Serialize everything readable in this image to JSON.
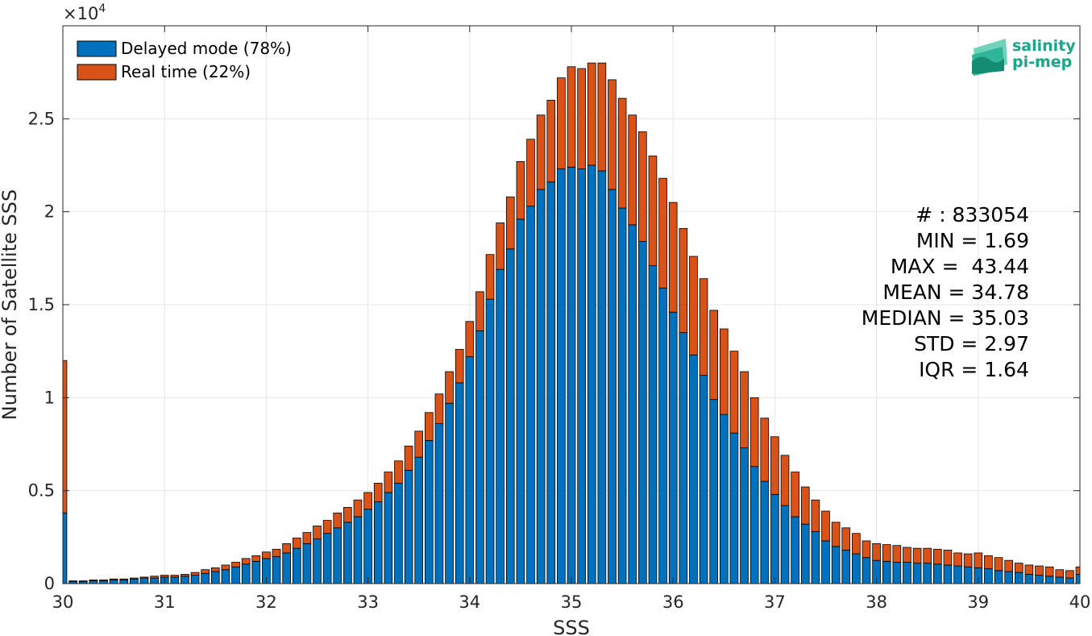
{
  "chart_data": {
    "type": "bar",
    "stacked": true,
    "xlabel": "SSS",
    "ylabel": "Number of Satellite SSS",
    "y_exponent_label": "×10",
    "y_exponent_power": "4",
    "xlim": [
      30,
      40
    ],
    "ylim": [
      0,
      30000
    ],
    "x_ticks": [
      "30",
      "31",
      "32",
      "33",
      "34",
      "35",
      "36",
      "37",
      "38",
      "39",
      "40"
    ],
    "y_ticks": [
      "0",
      "0.5",
      "1",
      "1.5",
      "2",
      "2.5"
    ],
    "grid": true,
    "legend_position": "top-left",
    "bin_width": 0.1,
    "x": [
      30.0,
      30.1,
      30.2,
      30.3,
      30.4,
      30.5,
      30.6,
      30.7,
      30.8,
      30.9,
      31.0,
      31.1,
      31.2,
      31.3,
      31.4,
      31.5,
      31.6,
      31.7,
      31.8,
      31.9,
      32.0,
      32.1,
      32.2,
      32.3,
      32.4,
      32.5,
      32.6,
      32.7,
      32.8,
      32.9,
      33.0,
      33.1,
      33.2,
      33.3,
      33.4,
      33.5,
      33.6,
      33.7,
      33.8,
      33.9,
      34.0,
      34.1,
      34.2,
      34.3,
      34.4,
      34.5,
      34.6,
      34.7,
      34.8,
      34.9,
      35.0,
      35.1,
      35.2,
      35.3,
      35.4,
      35.5,
      35.6,
      35.7,
      35.8,
      35.9,
      36.0,
      36.1,
      36.2,
      36.3,
      36.4,
      36.5,
      36.6,
      36.7,
      36.8,
      36.9,
      37.0,
      37.1,
      37.2,
      37.3,
      37.4,
      37.5,
      37.6,
      37.7,
      37.8,
      37.9,
      38.0,
      38.1,
      38.2,
      38.3,
      38.4,
      38.5,
      38.6,
      38.7,
      38.8,
      38.9,
      39.0,
      39.1,
      39.2,
      39.3,
      39.4,
      39.5,
      39.6,
      39.7,
      39.8,
      39.9,
      40.0
    ],
    "series": [
      {
        "name": "Delayed mode (78%)",
        "color": "#0072BD",
        "values": [
          3800,
          100,
          100,
          150,
          150,
          200,
          200,
          250,
          300,
          300,
          350,
          350,
          400,
          450,
          550,
          650,
          750,
          900,
          1050,
          1200,
          1350,
          1450,
          1650,
          1900,
          2150,
          2400,
          2700,
          3000,
          3300,
          3600,
          4000,
          4400,
          4900,
          5400,
          6100,
          6800,
          7700,
          8600,
          9700,
          10800,
          12200,
          13600,
          15300,
          16900,
          18000,
          19600,
          20300,
          21200,
          21600,
          22300,
          22400,
          22300,
          22500,
          22200,
          21200,
          20200,
          19300,
          18400,
          17100,
          15900,
          14600,
          13500,
          12300,
          11200,
          9900,
          9100,
          8100,
          7300,
          6300,
          5500,
          4800,
          4200,
          3600,
          3200,
          2800,
          2300,
          2000,
          1800,
          1600,
          1400,
          1250,
          1200,
          1150,
          1150,
          1100,
          1100,
          1050,
          1000,
          950,
          900,
          850,
          800,
          700,
          650,
          600,
          500,
          450,
          400,
          350,
          300,
          500
        ]
      },
      {
        "name": "Real time (22%)",
        "color": "#D95319",
        "values": [
          8200,
          50,
          50,
          50,
          50,
          50,
          50,
          50,
          50,
          100,
          100,
          100,
          100,
          150,
          200,
          200,
          250,
          250,
          300,
          300,
          350,
          400,
          500,
          550,
          600,
          700,
          700,
          800,
          800,
          900,
          900,
          1000,
          1100,
          1200,
          1300,
          1400,
          1500,
          1600,
          1700,
          1800,
          1900,
          2100,
          2400,
          2500,
          2800,
          3100,
          3600,
          4000,
          4400,
          4900,
          5400,
          5400,
          5500,
          5800,
          5900,
          5900,
          5900,
          5900,
          5900,
          5900,
          5900,
          5600,
          5300,
          5200,
          4800,
          4600,
          4400,
          4100,
          3700,
          3400,
          3100,
          2700,
          2400,
          2000,
          1700,
          1600,
          1300,
          1200,
          1100,
          900,
          900,
          900,
          900,
          800,
          800,
          800,
          800,
          800,
          700,
          700,
          800,
          700,
          700,
          600,
          500,
          500,
          500,
          500,
          400,
          400,
          400
        ]
      }
    ],
    "annotations": [
      "# : 833054",
      "MIN = 1.69",
      "MAX =  43.44",
      "MEAN = 34.78",
      "MEDIAN = 35.03",
      "STD = 2.97",
      "IQR = 1.64"
    ]
  },
  "logo": {
    "line1": "salinity",
    "line2": "pi-mep"
  }
}
